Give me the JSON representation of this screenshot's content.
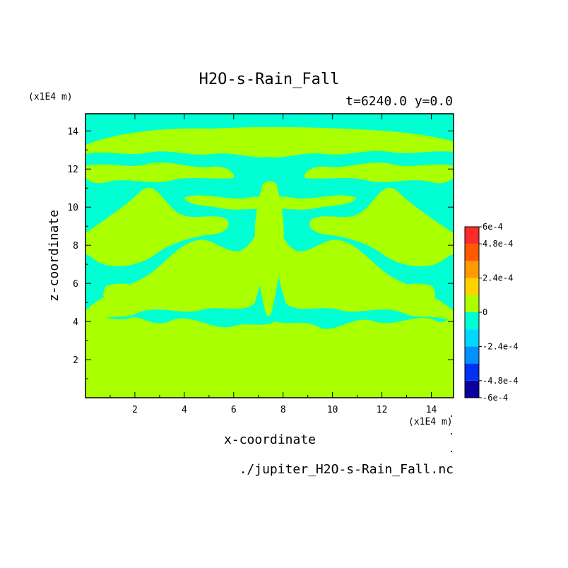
{
  "chart_data": {
    "type": "heatmap",
    "title": "H2O-s-Rain_Fall",
    "subtitle": "t=6240.0 y=0.0",
    "xlabel": "x-coordinate",
    "ylabel": "z-coordinate",
    "x_unit": "(x1E4 m)",
    "z_unit": "(x1E4 m)",
    "footer": "./jupiter_H2O-s-Rain_Fall.nc",
    "xlim": [
      0,
      14.9
    ],
    "ylim": [
      0,
      14.9
    ],
    "x_ticks": [
      2,
      4,
      6,
      8,
      10,
      12,
      14
    ],
    "y_ticks": [
      2,
      4,
      6,
      8,
      10,
      12,
      14
    ],
    "x_tick_labels": [
      "2",
      "4",
      "6",
      "8",
      "10",
      "12",
      "14"
    ],
    "y_tick_labels": [
      "2",
      "4",
      "6",
      "8",
      "10",
      "12",
      "14"
    ],
    "colorbar": {
      "levels": [
        -0.0006,
        -0.00048,
        -0.00036,
        -0.00024,
        -0.00012,
        0,
        0.00012,
        0.00024,
        0.00036,
        0.00048,
        0.0006
      ],
      "tick_labels": [
        "-6e-4",
        "-4.8e-4",
        "-2.4e-4",
        "0",
        "2.4e-4",
        "4.8e-4",
        "6e-4"
      ],
      "tick_values": [
        -0.0006,
        -0.00048,
        -0.00024,
        0,
        0.00024,
        0.00048,
        0.0006
      ],
      "colors": [
        "#0a00a0",
        "#0030f0",
        "#0090ff",
        "#00d8ff",
        "#00ffd2",
        "#aaff00",
        "#ffd200",
        "#ff9a00",
        "#ff5a00",
        "#ff2a2a"
      ]
    },
    "field_colors": {
      "below_zero": "#00ffd2",
      "above_zero": "#aaff00"
    }
  }
}
